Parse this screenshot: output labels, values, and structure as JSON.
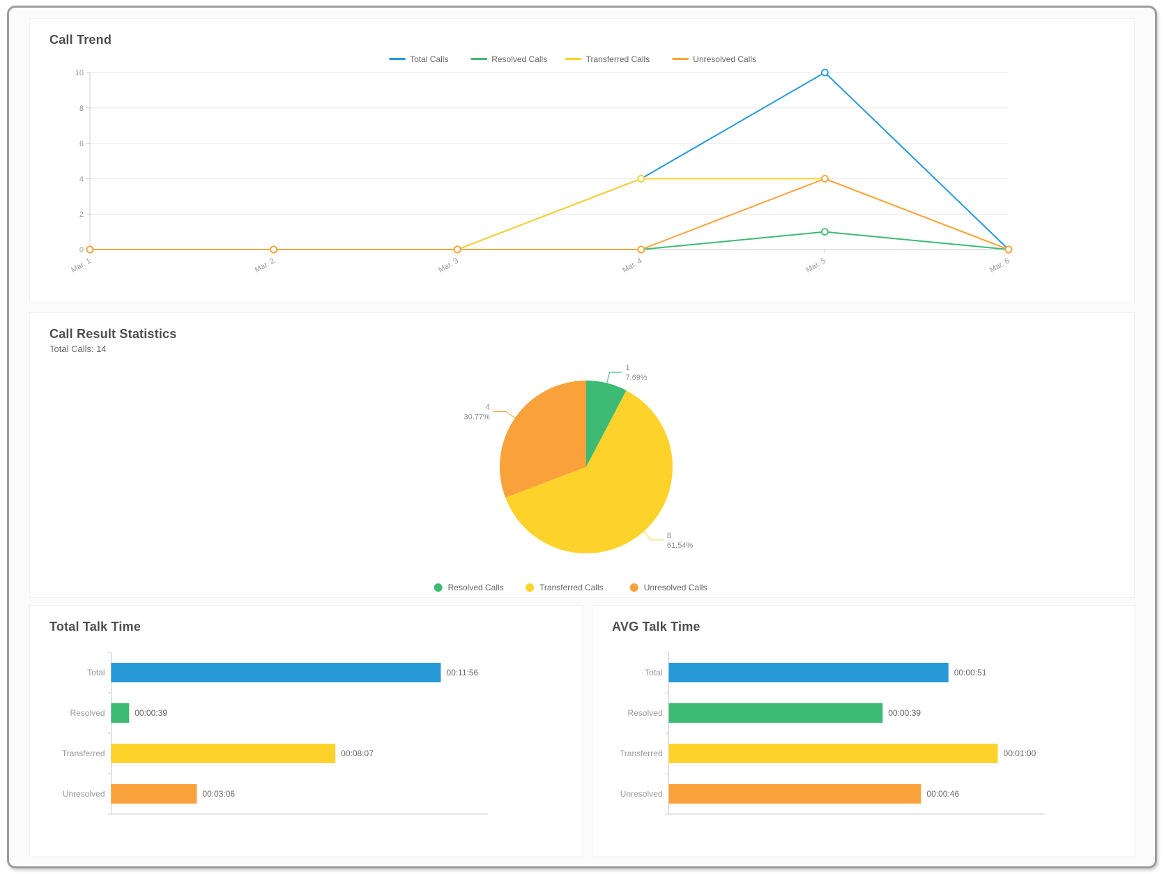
{
  "panels": {
    "call_trend": {
      "title": "Call Trend"
    },
    "call_result": {
      "title": "Call Result Statistics",
      "subtitle": "Total Calls: 14"
    },
    "total_talk": {
      "title": "Total Talk Time"
    },
    "avg_talk": {
      "title": "AVG Talk Time"
    }
  },
  "colors": {
    "blue": "#2699D6",
    "green": "#3DBA73",
    "yellow": "#FDD32B",
    "orange": "#F9A23C",
    "axis_line": "#CCCCCC",
    "grid_line": "#E8E8E8",
    "axis_text": "#999999",
    "value_text": "#666666"
  },
  "chart_data": [
    {
      "type": "line",
      "title": "Call Trend",
      "x": [
        "Mar. 1",
        "Mar. 2",
        "Mar. 3",
        "Mar. 4",
        "Mar. 5",
        "Mar. 6"
      ],
      "ylim": [
        0,
        10
      ],
      "yticks": [
        0,
        2,
        4,
        6,
        8,
        10
      ],
      "grid": true,
      "legend_position": "top",
      "series": [
        {
          "name": "Total Calls",
          "color": "#2699D6",
          "values": [
            0,
            0,
            0,
            4,
            10,
            0
          ]
        },
        {
          "name": "Resolved Calls",
          "color": "#3DBA73",
          "values": [
            0,
            0,
            0,
            0,
            1,
            0
          ]
        },
        {
          "name": "Transferred Calls",
          "color": "#FDD32B",
          "values": [
            0,
            0,
            0,
            4,
            4,
            0
          ]
        },
        {
          "name": "Unresolved Calls",
          "color": "#F9A23C",
          "values": [
            0,
            0,
            0,
            0,
            4,
            0
          ]
        }
      ]
    },
    {
      "type": "pie",
      "title": "Call Result Statistics",
      "subtitle": "Total Calls: 14",
      "legend_position": "bottom",
      "slices": [
        {
          "name": "Resolved Calls",
          "value": 1,
          "pct": "7.69%",
          "color": "#3DBA73"
        },
        {
          "name": "Transferred Calls",
          "value": 8,
          "pct": "61.54%",
          "color": "#FDD32B"
        },
        {
          "name": "Unresolved Calls",
          "value": 4,
          "pct": "30.77%",
          "color": "#F9A23C"
        }
      ]
    },
    {
      "type": "bar",
      "title": "Total Talk Time",
      "categories": [
        "Total",
        "Resolved",
        "Transferred",
        "Unresolved"
      ],
      "labels": [
        "00:11:56",
        "00:00:39",
        "00:08:07",
        "00:03:06"
      ],
      "values_seconds": [
        716,
        39,
        487,
        186
      ],
      "xlim": [
        0,
        810
      ],
      "colors": [
        "#2699D6",
        "#3DBA73",
        "#FDD32B",
        "#F9A23C"
      ]
    },
    {
      "type": "bar",
      "title": "AVG Talk Time",
      "categories": [
        "Total",
        "Resolved",
        "Transferred",
        "Unresolved"
      ],
      "labels": [
        "00:00:51",
        "00:00:39",
        "00:01:00",
        "00:00:46"
      ],
      "values_seconds": [
        51,
        39,
        60,
        46
      ],
      "xlim": [
        0,
        68
      ],
      "colors": [
        "#2699D6",
        "#3DBA73",
        "#FDD32B",
        "#F9A23C"
      ]
    }
  ]
}
